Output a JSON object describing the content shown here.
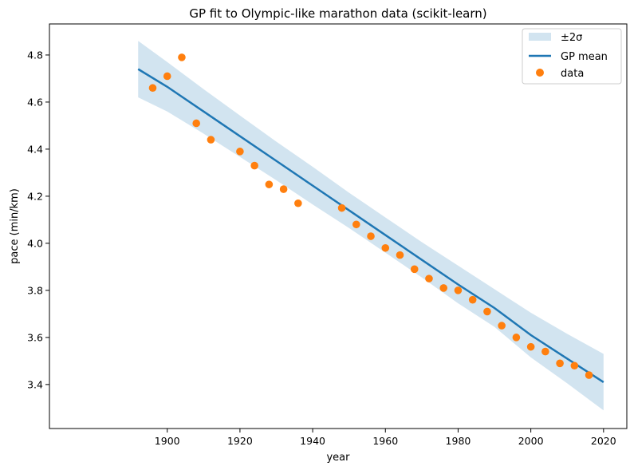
{
  "chart_data": {
    "type": "line",
    "title": "GP fit to Olympic-like marathon data (scikit-learn)",
    "xlabel": "year",
    "ylabel": "pace (min/km)",
    "xlim": [
      1867.6,
      2026.4
    ],
    "ylim": [
      3.213,
      4.932
    ],
    "xticks": [
      1900,
      1920,
      1940,
      1960,
      1980,
      2000,
      2020
    ],
    "yticks": [
      3.4,
      3.6,
      3.8,
      4.0,
      4.2,
      4.4,
      4.6,
      4.8
    ],
    "legend_position": "top-right",
    "legend": {
      "band_label": "±2σ",
      "mean_label": "GP mean",
      "data_label": "data"
    },
    "colors": {
      "mean": "#1f77b4",
      "band": "#1f77b4",
      "data": "#ff7f0e"
    },
    "gp_mean": {
      "x": [
        1892,
        1900,
        1910,
        1920,
        1930,
        1940,
        1950,
        1960,
        1970,
        1980,
        1990,
        2000,
        2010,
        2020
      ],
      "y": [
        4.74,
        4.665,
        4.56,
        4.455,
        4.35,
        4.245,
        4.14,
        4.035,
        3.93,
        3.825,
        3.725,
        3.61,
        3.51,
        3.41
      ]
    },
    "band": {
      "x": [
        1892,
        1900,
        1910,
        1920,
        1930,
        1940,
        1950,
        1960,
        1970,
        1980,
        1990,
        2000,
        2010,
        2020
      ],
      "upper": [
        4.86,
        4.77,
        4.655,
        4.543,
        4.432,
        4.325,
        4.215,
        4.11,
        4.005,
        3.905,
        3.805,
        3.705,
        3.615,
        3.53
      ],
      "lower": [
        4.62,
        4.56,
        4.466,
        4.367,
        4.268,
        4.165,
        4.065,
        3.96,
        3.855,
        3.745,
        3.645,
        3.515,
        3.405,
        3.29
      ]
    },
    "data": {
      "x": [
        1896,
        1900,
        1904,
        1908,
        1912,
        1920,
        1924,
        1928,
        1932,
        1936,
        1948,
        1952,
        1956,
        1960,
        1964,
        1968,
        1972,
        1976,
        1980,
        1984,
        1988,
        1992,
        1996,
        2000,
        2004,
        2008,
        2012,
        2016
      ],
      "y": [
        4.66,
        4.71,
        4.79,
        4.51,
        4.44,
        4.39,
        4.33,
        4.25,
        4.23,
        4.17,
        4.15,
        4.08,
        4.03,
        3.98,
        3.95,
        3.89,
        3.85,
        3.81,
        3.8,
        3.76,
        3.71,
        3.65,
        3.6,
        3.56,
        3.54,
        3.49,
        3.48,
        3.44
      ]
    }
  }
}
